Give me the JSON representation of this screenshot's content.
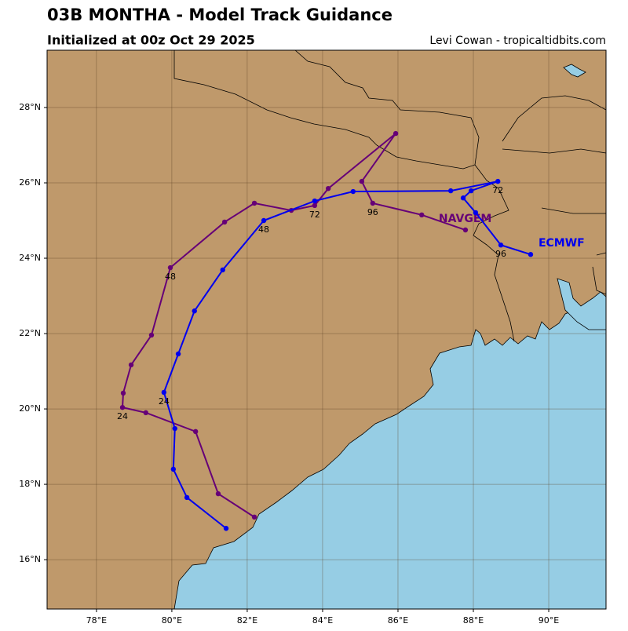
{
  "chart_data": {
    "type": "track-map",
    "title": "03B MONTHA - Model Track Guidance",
    "subtitle": "Initialized at 00z Oct 29 2025",
    "credit": "Levi Cowan - tropicaltidbits.com",
    "xlim": [
      76.69,
      91.52
    ],
    "ylim": [
      14.69,
      29.52
    ],
    "xticks": [
      {
        "value": 78,
        "label": "78°E"
      },
      {
        "value": 80,
        "label": "80°E"
      },
      {
        "value": 82,
        "label": "82°E"
      },
      {
        "value": 84,
        "label": "84°E"
      },
      {
        "value": 86,
        "label": "86°E"
      },
      {
        "value": 88,
        "label": "88°E"
      },
      {
        "value": 90,
        "label": "90°E"
      }
    ],
    "yticks": [
      {
        "value": 16,
        "label": "16°N"
      },
      {
        "value": 18,
        "label": "18°N"
      },
      {
        "value": 20,
        "label": "20°N"
      },
      {
        "value": 22,
        "label": "22°N"
      },
      {
        "value": 24,
        "label": "24°N"
      },
      {
        "value": 26,
        "label": "26°N"
      },
      {
        "value": 28,
        "label": "28°N"
      }
    ],
    "grid": true,
    "series": [
      {
        "name": "NAVGEM",
        "color": "#660077",
        "x": [
          82.19,
          81.23,
          80.63,
          79.31,
          78.69,
          78.71,
          78.92,
          79.46,
          79.96,
          81.4,
          82.19,
          83.17,
          83.79,
          84.15,
          85.94,
          85.04,
          85.33,
          86.63,
          87.79
        ],
        "values": [
          17.13,
          17.75,
          19.4,
          19.9,
          20.04,
          20.42,
          21.17,
          21.96,
          23.75,
          24.96,
          25.46,
          25.27,
          25.4,
          25.85,
          27.31,
          26.04,
          25.46,
          25.15,
          24.75
        ],
        "hour_labels": [
          null,
          null,
          null,
          null,
          "24",
          null,
          null,
          null,
          "48",
          null,
          null,
          null,
          "72",
          null,
          null,
          null,
          "96",
          null,
          null
        ]
      },
      {
        "name": "ECMWF",
        "color": "#0000ee",
        "x": [
          81.44,
          80.4,
          80.04,
          80.08,
          79.79,
          80.17,
          80.6,
          81.35,
          82.44,
          83.79,
          84.81,
          87.4,
          88.65,
          87.94,
          87.73,
          88.06,
          88.73,
          89.52
        ],
        "values": [
          16.83,
          17.65,
          18.4,
          19.48,
          20.44,
          21.46,
          22.6,
          23.69,
          25.0,
          25.52,
          25.77,
          25.79,
          26.04,
          25.79,
          25.6,
          25.21,
          24.35,
          24.1
        ],
        "hour_labels": [
          null,
          null,
          null,
          null,
          "24",
          null,
          null,
          null,
          "48",
          null,
          null,
          null,
          "72",
          null,
          null,
          null,
          "96",
          null
        ]
      }
    ]
  }
}
